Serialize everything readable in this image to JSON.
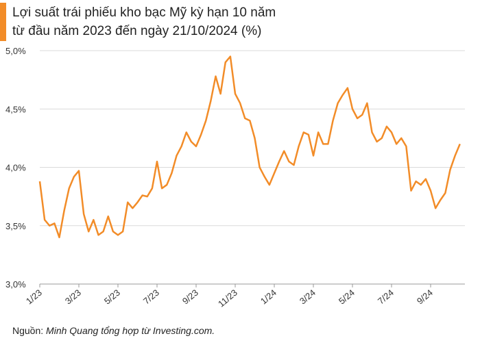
{
  "chart_data": {
    "type": "line",
    "title": "Lợi suất trái phiếu kho bạc Mỹ kỳ hạn 10 năm",
    "subtitle": "từ đầu năm 2023 đến ngày 21/10/2024 (%)",
    "source_label": "Nguồn:",
    "source": "Minh Quang tổng hợp từ Investing.com.",
    "grid": true,
    "categories": [
      "1/23",
      null,
      null,
      null,
      null,
      null,
      null,
      null,
      "3/23",
      null,
      null,
      null,
      null,
      null,
      null,
      null,
      "5/23",
      null,
      null,
      null,
      null,
      null,
      null,
      null,
      "7/23",
      null,
      null,
      null,
      null,
      null,
      null,
      null,
      "9/23",
      null,
      null,
      null,
      null,
      null,
      null,
      null,
      "11/23",
      null,
      null,
      null,
      null,
      null,
      null,
      null,
      "1/24",
      null,
      null,
      null,
      null,
      null,
      null,
      null,
      "3/24",
      null,
      null,
      null,
      null,
      null,
      null,
      null,
      "5/24",
      null,
      null,
      null,
      null,
      null,
      null,
      null,
      "7/24",
      null,
      null,
      null,
      null,
      null,
      null,
      null,
      "9/24",
      null,
      null,
      null,
      null,
      null,
      null
    ],
    "series": [
      {
        "name": "Lợi suất",
        "color": "#f28c28",
        "values": [
          3.88,
          3.55,
          3.5,
          3.52,
          3.4,
          3.63,
          3.82,
          3.92,
          3.97,
          3.6,
          3.45,
          3.55,
          3.42,
          3.45,
          3.58,
          3.45,
          3.42,
          3.45,
          3.7,
          3.65,
          3.7,
          3.76,
          3.75,
          3.82,
          4.05,
          3.82,
          3.85,
          3.95,
          4.1,
          4.18,
          4.3,
          4.22,
          4.18,
          4.28,
          4.4,
          4.57,
          4.78,
          4.63,
          4.9,
          4.95,
          4.63,
          4.55,
          4.42,
          4.4,
          4.25,
          4.0,
          3.92,
          3.85,
          3.95,
          4.05,
          4.14,
          4.05,
          4.02,
          4.18,
          4.3,
          4.28,
          4.1,
          4.3,
          4.2,
          4.2,
          4.4,
          4.55,
          4.62,
          4.68,
          4.5,
          4.42,
          4.45,
          4.55,
          4.3,
          4.22,
          4.25,
          4.35,
          4.3,
          4.2,
          4.25,
          4.18,
          3.8,
          3.88,
          3.85,
          3.9,
          3.8,
          3.65,
          3.72,
          3.78,
          3.98,
          4.1,
          4.2
        ]
      }
    ],
    "ylim": [
      3.0,
      5.0
    ],
    "yticks": [
      {
        "value": 3.0,
        "label": "3,0%"
      },
      {
        "value": 3.5,
        "label": "3,5%"
      },
      {
        "value": 4.0,
        "label": "4,0%"
      },
      {
        "value": 4.5,
        "label": "4,5%"
      },
      {
        "value": 5.0,
        "label": "5,0%"
      }
    ]
  }
}
